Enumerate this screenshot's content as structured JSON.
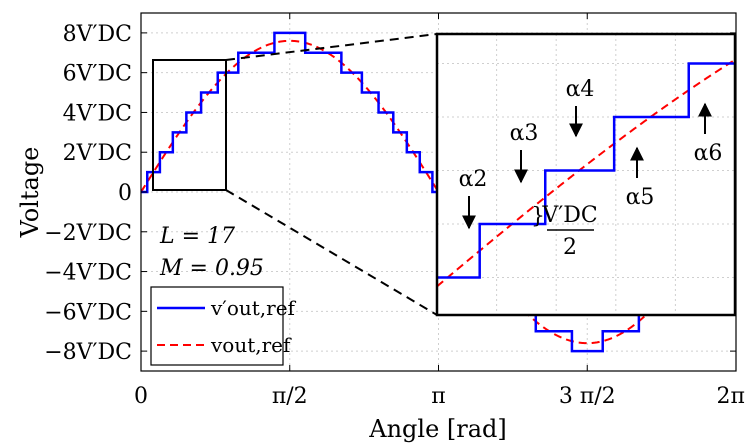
{
  "chart_data": {
    "type": "line",
    "title": "",
    "xlabel": "Angle [rad]",
    "ylabel": "Voltage",
    "xlim": [
      0,
      6.2832
    ],
    "ylim": [
      -9,
      9
    ],
    "grid": true,
    "x_ticks": [
      {
        "value": 0,
        "label": "0"
      },
      {
        "value": 1.5708,
        "label": "π/2"
      },
      {
        "value": 3.1416,
        "label": "π"
      },
      {
        "value": 4.7124,
        "label": "3 π/2"
      },
      {
        "value": 6.2832,
        "label": "2π"
      }
    ],
    "y_ticks": [
      {
        "value": 8,
        "label": "8V′DC"
      },
      {
        "value": 6,
        "label": "6V′DC"
      },
      {
        "value": 4,
        "label": "4V′DC"
      },
      {
        "value": 2,
        "label": "2V′DC"
      },
      {
        "value": 0,
        "label": "0"
      },
      {
        "value": -2,
        "label": "−2V′DC"
      },
      {
        "value": -4,
        "label": "−4V′DC"
      },
      {
        "value": -6,
        "label": "−6V′DC"
      },
      {
        "value": -8,
        "label": "−8V′DC"
      }
    ],
    "levels": 17,
    "modulation_index": 0.95,
    "amplitude": 7.6,
    "series": [
      {
        "name": "v′out,ref",
        "style": "staircase",
        "color": "#0000ff"
      },
      {
        "name": "vout,ref",
        "style": "sinusoid",
        "color": "#ff0000",
        "dash": true
      }
    ],
    "annotations": {
      "L_text": "L = 17",
      "M_text": "M = 0.95",
      "half_step_numerator": "V′DC",
      "half_step_denominator": "2",
      "brace": "}",
      "alphas": [
        "α2",
        "α3",
        "α4",
        "α5",
        "α6"
      ]
    },
    "inset": {
      "xlim": [
        0.11,
        0.73
      ],
      "ylim": [
        0.3,
        5.55
      ]
    },
    "legend_position": "bottom-left"
  }
}
